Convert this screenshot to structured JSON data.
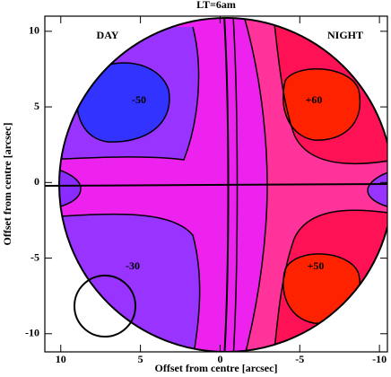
{
  "chart_data": {
    "type": "contour",
    "title": "LT=6am",
    "x_label": "Offset from centre [arcsec]",
    "y_label": "Offset from centre [arcsec]",
    "xlim": [
      11,
      -10.5
    ],
    "ylim": [
      -11.2,
      11
    ],
    "xticks": [
      10,
      5,
      0,
      -5,
      -10
    ],
    "yticks": [
      10,
      5,
      0,
      -5,
      -10
    ],
    "annotations": [
      "DAY",
      "NIGHT",
      "-50",
      "+60",
      "-30",
      "+50"
    ]
  }
}
